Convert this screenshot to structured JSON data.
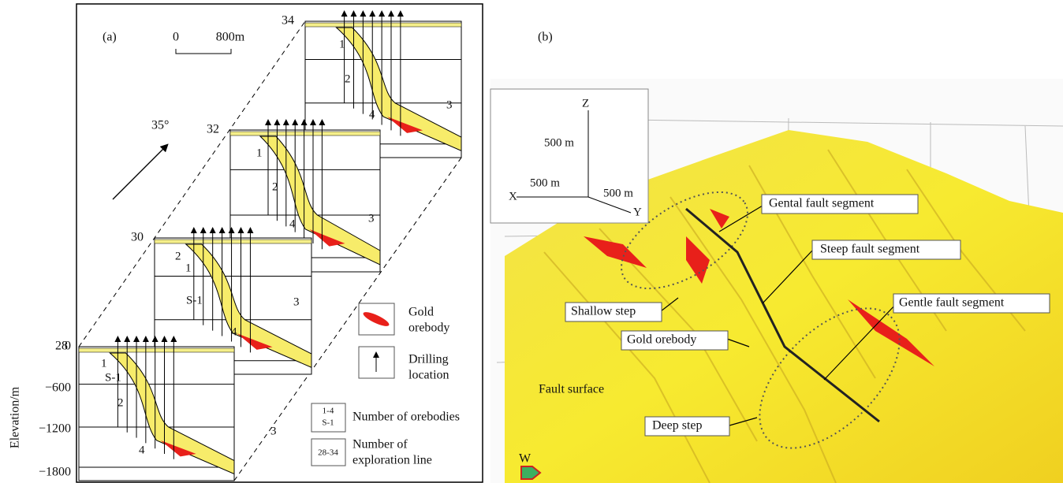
{
  "panel_a": {
    "tag": "(a)",
    "scale": {
      "start": "0",
      "end": "800m"
    },
    "direction": "35°",
    "sections": [
      {
        "line": "34",
        "labels": [
          "1",
          "2",
          "3",
          "4"
        ]
      },
      {
        "line": "32",
        "labels": [
          "1",
          "2",
          "3",
          "4"
        ]
      },
      {
        "line": "30",
        "labels": [
          "2",
          "1",
          "S-1",
          "3",
          "4"
        ]
      },
      {
        "line": "28",
        "labels": [
          "1",
          "S-1",
          "2",
          "3",
          "4"
        ]
      }
    ],
    "axis": {
      "title": "Elevation/m",
      "ticks": [
        "0",
        "−600",
        "−1200",
        "−1800"
      ]
    },
    "legend": {
      "orebody": [
        "Gold",
        "orebody"
      ],
      "drill": [
        "Drilling",
        "location"
      ],
      "orebody_number": {
        "box": [
          "1-4",
          "S-1"
        ],
        "text": "Number of orebodies"
      },
      "line_number": {
        "box": "28-34",
        "text": [
          "Number of",
          "exploration line"
        ]
      }
    }
  },
  "panel_b": {
    "tag": "(b)",
    "axes": {
      "z": "Z",
      "x": "X",
      "y": "Y",
      "z_len": "500 m",
      "x_len": "500 m",
      "y_len": "500 m"
    },
    "labels": {
      "gental": "Gental  fault segment",
      "steep": "Steep  fault segment",
      "gentle": "Gentle  fault segment",
      "shallow": "Shallow step",
      "orebody": "Gold orebody",
      "surface": "Fault surface",
      "deep": "Deep step",
      "north": "W"
    }
  }
}
